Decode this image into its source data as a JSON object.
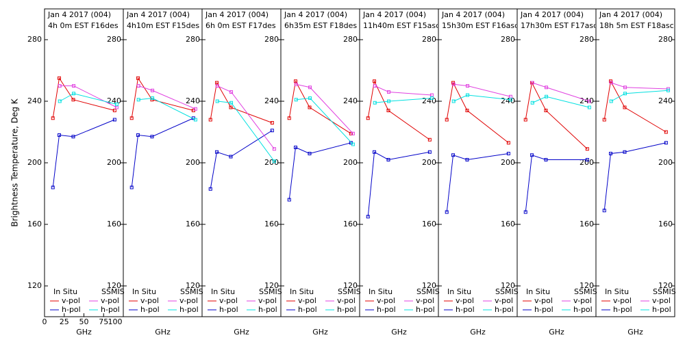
{
  "chart_data": [
    {
      "type": "line",
      "title": "Jan 4 2017 (004)",
      "subtitle": "4h 0m EST F16des",
      "ylabel": "Brightness Temperature, Deg K",
      "xlabel": "GHz",
      "xlim": [
        0,
        100
      ],
      "ylim": [
        100,
        300
      ],
      "xticks": [
        0,
        25,
        50,
        75,
        100
      ],
      "yticks": [
        120,
        160,
        200,
        240,
        280
      ],
      "legend_titles": [
        "In Situ",
        "SSMIS"
      ],
      "series": [
        {
          "name": "v-pol",
          "color": "#e00000",
          "x": [
            10.65,
            18.7,
            36.5,
            89
          ],
          "values": [
            229,
            255,
            241,
            234
          ]
        },
        {
          "name": "h-pol",
          "color": "#0000c8",
          "x": [
            10.65,
            18.7,
            36.5,
            89
          ],
          "values": [
            184,
            218,
            217,
            228
          ]
        },
        {
          "name": "v-pol",
          "color": "#e040e0",
          "x": [
            19.35,
            37,
            91.655
          ],
          "values": [
            250,
            250,
            236
          ]
        },
        {
          "name": "h-pol",
          "color": "#00e0e0",
          "x": [
            19.35,
            37,
            91.655
          ],
          "values": [
            240,
            245,
            238
          ]
        }
      ]
    },
    {
      "type": "line",
      "title": "Jan 4 2017 (004)",
      "subtitle": "4h10m EST F15des",
      "xlabel": "GHz",
      "ylim": [
        100,
        300
      ],
      "yticks": [
        120,
        160,
        200,
        240,
        280
      ],
      "legend_titles": [
        "In Situ",
        "SSMIS"
      ],
      "series": [
        {
          "name": "v-pol",
          "color": "#e00000",
          "x": [
            10.65,
            18.7,
            36.5,
            89
          ],
          "values": [
            229,
            255,
            241,
            234
          ]
        },
        {
          "name": "h-pol",
          "color": "#0000c8",
          "x": [
            10.65,
            18.7,
            36.5,
            89
          ],
          "values": [
            184,
            218,
            217,
            229
          ]
        },
        {
          "name": "v-pol",
          "color": "#e040e0",
          "x": [
            19.35,
            37,
            91.655
          ],
          "values": [
            250,
            247,
            235
          ]
        },
        {
          "name": "h-pol",
          "color": "#00e0e0",
          "x": [
            19.35,
            37,
            91.655
          ],
          "values": [
            241,
            242,
            228
          ]
        }
      ]
    },
    {
      "type": "line",
      "title": "Jan 4 2017 (004)",
      "subtitle": "6h 0m EST F17des",
      "xlabel": "GHz",
      "ylim": [
        100,
        300
      ],
      "yticks": [
        120,
        160,
        200,
        240,
        280
      ],
      "legend_titles": [
        "In Situ",
        "SSMIS"
      ],
      "series": [
        {
          "name": "v-pol",
          "color": "#e00000",
          "x": [
            10.65,
            18.7,
            36.5,
            89
          ],
          "values": [
            228,
            252,
            236,
            226
          ]
        },
        {
          "name": "h-pol",
          "color": "#0000c8",
          "x": [
            10.65,
            18.7,
            36.5,
            89
          ],
          "values": [
            183,
            207,
            204,
            221
          ]
        },
        {
          "name": "v-pol",
          "color": "#e040e0",
          "x": [
            19.35,
            37,
            91.655
          ],
          "values": [
            250,
            246,
            209
          ]
        },
        {
          "name": "h-pol",
          "color": "#00e0e0",
          "x": [
            19.35,
            37,
            91.655
          ],
          "values": [
            240,
            239,
            201
          ]
        }
      ]
    },
    {
      "type": "line",
      "title": "Jan 4 2017 (004)",
      "subtitle": "6h35m EST F18des",
      "xlabel": "GHz",
      "ylim": [
        100,
        300
      ],
      "yticks": [
        120,
        160,
        200,
        240,
        280
      ],
      "legend_titles": [
        "In Situ",
        "SSMIS"
      ],
      "series": [
        {
          "name": "v-pol",
          "color": "#e00000",
          "x": [
            10.65,
            18.7,
            36.5,
            89
          ],
          "values": [
            229,
            253,
            236,
            219
          ]
        },
        {
          "name": "h-pol",
          "color": "#0000c8",
          "x": [
            10.65,
            18.7,
            36.5,
            89
          ],
          "values": [
            176,
            210,
            206,
            213
          ]
        },
        {
          "name": "v-pol",
          "color": "#e040e0",
          "x": [
            19.35,
            37,
            91.655
          ],
          "values": [
            251,
            249,
            219
          ]
        },
        {
          "name": "h-pol",
          "color": "#00e0e0",
          "x": [
            19.35,
            37,
            91.655
          ],
          "values": [
            241,
            242,
            212
          ]
        }
      ]
    },
    {
      "type": "line",
      "title": "Jan 4 2017 (004)",
      "subtitle": "11h40m EST F15asc",
      "xlabel": "GHz",
      "ylim": [
        100,
        300
      ],
      "yticks": [
        120,
        160,
        200,
        240,
        280
      ],
      "legend_titles": [
        "In Situ",
        "SSMIS"
      ],
      "series": [
        {
          "name": "v-pol",
          "color": "#e00000",
          "x": [
            10.65,
            18.7,
            36.5,
            89
          ],
          "values": [
            229,
            253,
            234,
            215
          ]
        },
        {
          "name": "h-pol",
          "color": "#0000c8",
          "x": [
            10.65,
            18.7,
            36.5,
            89
          ],
          "values": [
            165,
            207,
            202,
            207
          ]
        },
        {
          "name": "v-pol",
          "color": "#e040e0",
          "x": [
            19.35,
            37,
            91.655
          ],
          "values": [
            250,
            246,
            244
          ]
        },
        {
          "name": "h-pol",
          "color": "#00e0e0",
          "x": [
            19.35,
            37,
            91.655
          ],
          "values": [
            239,
            240,
            242
          ]
        }
      ]
    },
    {
      "type": "line",
      "title": "Jan 4 2017 (004)",
      "subtitle": "15h30m EST F16asc",
      "xlabel": "GHz",
      "ylim": [
        100,
        300
      ],
      "yticks": [
        120,
        160,
        200,
        240,
        280
      ],
      "legend_titles": [
        "In Situ",
        "SSMIS"
      ],
      "series": [
        {
          "name": "v-pol",
          "color": "#e00000",
          "x": [
            10.65,
            18.7,
            36.5,
            89
          ],
          "values": [
            228,
            252,
            234,
            213
          ]
        },
        {
          "name": "h-pol",
          "color": "#0000c8",
          "x": [
            10.65,
            18.7,
            36.5,
            89
          ],
          "values": [
            168,
            205,
            202,
            206
          ]
        },
        {
          "name": "v-pol",
          "color": "#e040e0",
          "x": [
            19.35,
            37,
            91.655
          ],
          "values": [
            251,
            250,
            243
          ]
        },
        {
          "name": "h-pol",
          "color": "#00e0e0",
          "x": [
            19.35,
            37,
            91.655
          ],
          "values": [
            240,
            244,
            241
          ]
        }
      ]
    },
    {
      "type": "line",
      "title": "Jan 4 2017 (004)",
      "subtitle": "17h30m EST F17asc",
      "xlabel": "GHz",
      "ylim": [
        100,
        300
      ],
      "yticks": [
        120,
        160,
        200,
        240,
        280
      ],
      "legend_titles": [
        "In Situ",
        "SSMIS"
      ],
      "series": [
        {
          "name": "v-pol",
          "color": "#e00000",
          "x": [
            10.65,
            18.7,
            36.5,
            89
          ],
          "values": [
            228,
            252,
            234,
            209
          ]
        },
        {
          "name": "h-pol",
          "color": "#0000c8",
          "x": [
            10.65,
            18.7,
            36.5,
            89
          ],
          "values": [
            168,
            205,
            202,
            202
          ]
        },
        {
          "name": "v-pol",
          "color": "#e040e0",
          "x": [
            19.35,
            37,
            91.655
          ],
          "values": [
            252,
            249,
            240
          ]
        },
        {
          "name": "h-pol",
          "color": "#00e0e0",
          "x": [
            19.35,
            37,
            91.655
          ],
          "values": [
            239,
            243,
            236
          ]
        }
      ]
    },
    {
      "type": "line",
      "title": "Jan 4 2017 (004)",
      "subtitle": "18h 5m EST F18asc",
      "xlabel": "GHz",
      "ylim": [
        100,
        300
      ],
      "yticks": [
        120,
        160,
        200,
        240,
        280
      ],
      "legend_titles": [
        "In Situ",
        "SSMIS"
      ],
      "series": [
        {
          "name": "v-pol",
          "color": "#e00000",
          "x": [
            10.65,
            18.7,
            36.5,
            89
          ],
          "values": [
            228,
            253,
            236,
            220
          ]
        },
        {
          "name": "h-pol",
          "color": "#0000c8",
          "x": [
            10.65,
            18.7,
            36.5,
            89
          ],
          "values": [
            169,
            206,
            207,
            213
          ]
        },
        {
          "name": "v-pol",
          "color": "#e040e0",
          "x": [
            19.35,
            37,
            91.655
          ],
          "values": [
            252,
            249,
            248
          ]
        },
        {
          "name": "h-pol",
          "color": "#00e0e0",
          "x": [
            19.35,
            37,
            91.655
          ],
          "values": [
            240,
            245,
            247
          ]
        }
      ]
    }
  ]
}
